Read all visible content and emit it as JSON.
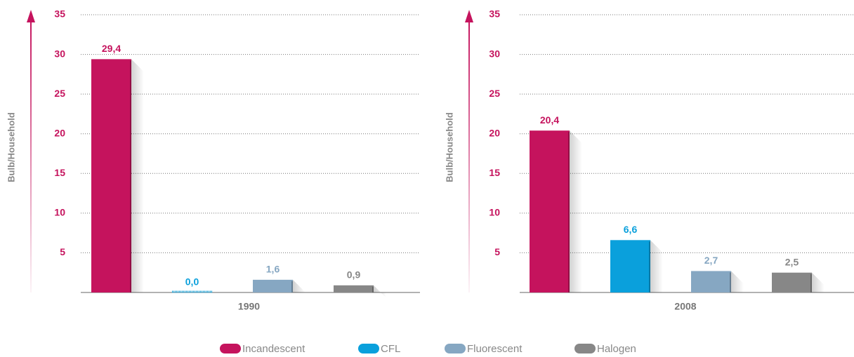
{
  "chart_data": [
    {
      "type": "bar",
      "ylabel": "Bulb/Household",
      "xlabel": "1990",
      "categories": [
        "Incandescent",
        "CFL",
        "Fluorescent",
        "Halogen"
      ],
      "values": [
        29.4,
        0.0,
        1.6,
        0.9
      ],
      "value_labels": [
        "29,4",
        "0,0",
        "1,6",
        "0,9"
      ],
      "colors": [
        "#c5135d",
        "#0aa0dc",
        "#86a7c2",
        "#878787"
      ],
      "ylim": [
        0,
        35
      ],
      "yticks": [
        5,
        10,
        15,
        20,
        25,
        30,
        35
      ],
      "grid": true
    },
    {
      "type": "bar",
      "ylabel": "Bulb/Household",
      "xlabel": "2008",
      "categories": [
        "Incandescent",
        "CFL",
        "Fluorescent",
        "Halogen"
      ],
      "values": [
        20.4,
        6.6,
        2.7,
        2.5
      ],
      "value_labels": [
        "20,4",
        "6,6",
        "2,7",
        "2,5"
      ],
      "colors": [
        "#c5135d",
        "#0aa0dc",
        "#86a7c2",
        "#878787"
      ],
      "ylim": [
        0,
        35
      ],
      "yticks": [
        5,
        10,
        15,
        20,
        25,
        30,
        35
      ],
      "grid": true
    }
  ]
}
